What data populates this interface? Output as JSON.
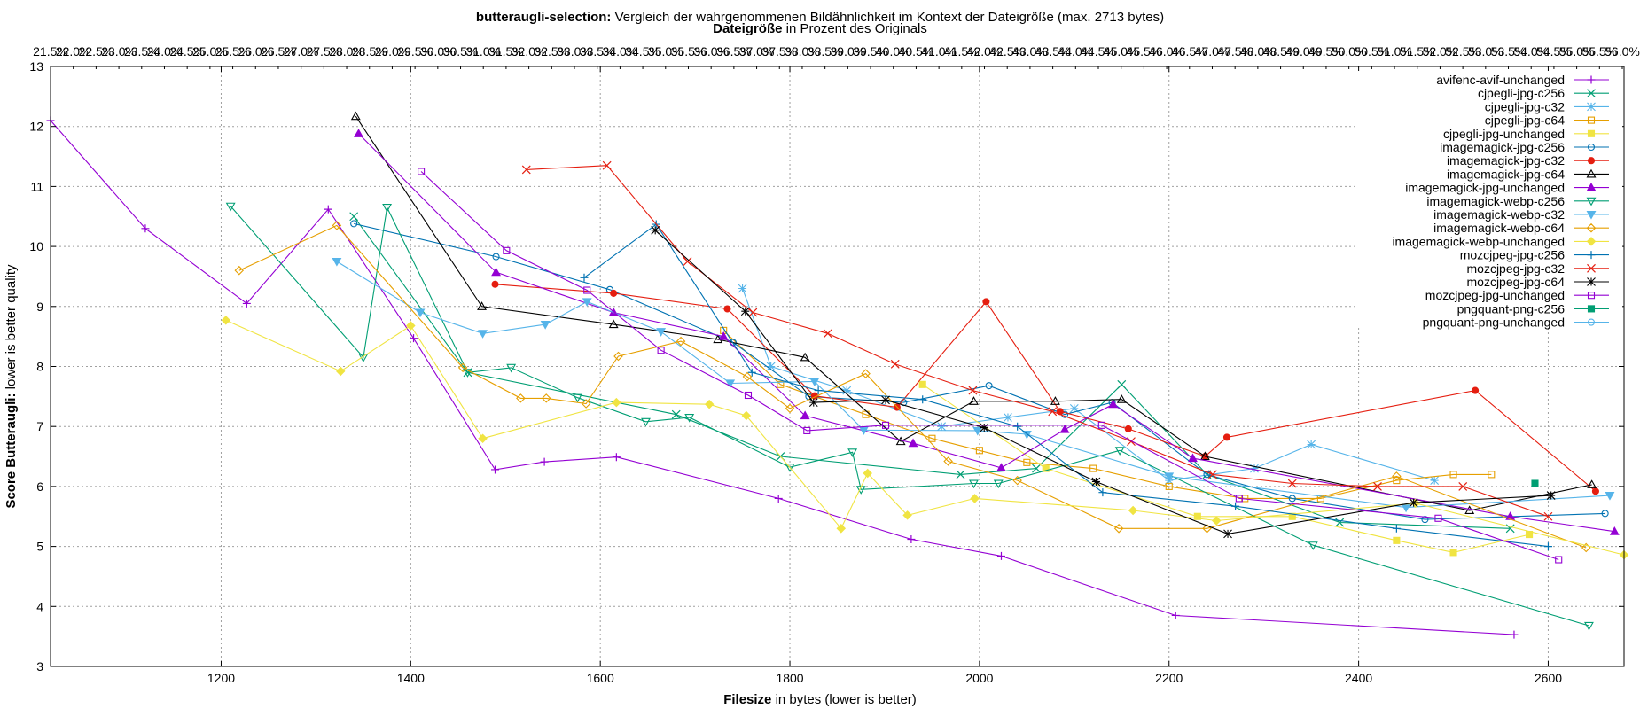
{
  "title": {
    "bold": "butteraugli-selection:",
    "rest": " Vergleich der wahrgenommenen Bildähnlichkeit im Kontext der Dateigröße (max. 2713 bytes)"
  },
  "x2label": {
    "bold": "Dateigröße",
    "rest": " in Prozent des Originals"
  },
  "xlabel": {
    "bold": "Filesize",
    "rest": " in bytes (lower is better)"
  },
  "ylabel": {
    "bold": "Score Butteraugli:",
    "rest": " lower is better quality"
  },
  "chart_data": {
    "type": "line",
    "xlim": [
      1020,
      2680
    ],
    "ylim": [
      3,
      13
    ],
    "x_ticks": [
      1200,
      1400,
      1600,
      1800,
      2000,
      2200,
      2400,
      2600
    ],
    "y_ticks": [
      3,
      4,
      5,
      6,
      7,
      8,
      9,
      10,
      11,
      12,
      13
    ],
    "x2_ticks": [
      "21.5%",
      "22.0%",
      "22.5%",
      "23.0%",
      "23.5%",
      "24.0%",
      "24.5%",
      "25.0%",
      "25.5%",
      "26.0%",
      "26.5%",
      "27.0%",
      "27.5%",
      "28.0%",
      "28.5%",
      "29.0%",
      "29.5%",
      "30.0%",
      "30.5%",
      "31.0%",
      "31.5%",
      "32.0%",
      "32.5%",
      "33.0%",
      "33.5%",
      "34.0%",
      "34.5%",
      "35.0%",
      "35.5%",
      "36.0%",
      "36.5%",
      "37.0%",
      "37.5%",
      "38.0%",
      "38.5%",
      "39.0%",
      "39.5%",
      "40.0%",
      "40.5%",
      "41.0%",
      "41.5%",
      "42.0%",
      "42.5%",
      "43.0%",
      "43.5%",
      "44.0%",
      "44.5%",
      "45.0%",
      "45.5%",
      "46.0%",
      "46.5%",
      "47.0%",
      "47.5%",
      "48.0%",
      "48.5%",
      "49.0%",
      "49.5%",
      "50.0%",
      "50.5%",
      "51.0%",
      "51.5%",
      "52.0%",
      "52.5%",
      "53.0%",
      "53.5%",
      "54.0%",
      "54.5%",
      "55.0%",
      "55.5%",
      "56.0%"
    ],
    "grid": true,
    "legend_position": "top-right",
    "series": [
      {
        "name": "avifenc-avif-unchanged",
        "color": "#9400d3",
        "marker": "plus",
        "x": [
          1020,
          1120,
          1227,
          1313,
          1403,
          1489,
          1541,
          1617,
          1788,
          1928,
          2023,
          2207,
          2564
        ],
        "y": [
          12.1,
          10.3,
          9.05,
          10.62,
          8.47,
          6.28,
          6.41,
          6.49,
          5.8,
          5.12,
          4.84,
          3.85,
          3.53
        ]
      },
      {
        "name": "cjpegli-jpg-c256",
        "color": "#009e73",
        "marker": "cross",
        "x": [
          1340,
          1460,
          1680,
          1790,
          1980,
          2060,
          2150,
          2240,
          2380,
          2560
        ],
        "y": [
          10.5,
          7.9,
          7.2,
          6.5,
          6.2,
          6.3,
          7.7,
          6.2,
          5.4,
          5.3
        ]
      },
      {
        "name": "cjpegli-jpg-c32",
        "color": "#56b4e9",
        "marker": "star",
        "x": [
          1750,
          1780,
          1860,
          1960,
          2030,
          2100,
          2200,
          2290,
          2350,
          2480
        ],
        "y": [
          9.3,
          8.0,
          7.6,
          7.0,
          7.15,
          7.3,
          6.1,
          6.3,
          6.7,
          6.1
        ]
      },
      {
        "name": "cjpegli-jpg-c64",
        "color": "#e69f00",
        "marker": "box",
        "x": [
          1730,
          1790,
          1880,
          1950,
          2000,
          2050,
          2120,
          2200,
          2280,
          2360,
          2440,
          2500,
          2540
        ],
        "y": [
          8.6,
          7.7,
          7.2,
          6.8,
          6.6,
          6.4,
          6.3,
          6.0,
          5.8,
          5.8,
          6.1,
          6.2,
          6.2
        ]
      },
      {
        "name": "cjpegli-jpg-unchanged",
        "color": "#f0e442",
        "marker": "boxf",
        "x": [
          1940,
          2070,
          2230,
          2330,
          2440,
          2500,
          2580
        ],
        "y": [
          7.7,
          6.3,
          5.5,
          5.5,
          5.1,
          4.9,
          5.2
        ]
      },
      {
        "name": "imagemagick-jpg-c256",
        "color": "#0072b2",
        "marker": "circle",
        "x": [
          1340,
          1490,
          1610,
          1740,
          1820,
          1920,
          2010,
          2090,
          2140,
          2240,
          2330,
          2470,
          2660
        ],
        "y": [
          10.38,
          9.83,
          9.28,
          8.4,
          7.5,
          7.4,
          7.68,
          7.2,
          7.4,
          6.2,
          5.8,
          5.45,
          5.55
        ]
      },
      {
        "name": "imagemagick-jpg-c32",
        "color": "#e51e10",
        "marker": "circlef",
        "x": [
          1489,
          1614,
          1734,
          1826,
          1913,
          2007,
          2085,
          2157,
          2238,
          2261,
          2523,
          2650
        ],
        "y": [
          9.37,
          9.22,
          8.96,
          7.51,
          7.32,
          9.08,
          7.25,
          6.96,
          6.5,
          6.82,
          7.6,
          5.92
        ]
      },
      {
        "name": "imagemagick-jpg-c64",
        "color": "#000000",
        "marker": "triangle",
        "x": [
          1342,
          1475,
          1614,
          1724,
          1816,
          1917,
          1994,
          2080,
          2150,
          2238,
          2517,
          2646
        ],
        "y": [
          12.17,
          9.0,
          8.7,
          8.45,
          8.15,
          6.75,
          7.42,
          7.42,
          7.45,
          6.5,
          5.6,
          6.03
        ]
      },
      {
        "name": "imagemagick-jpg-unchanged",
        "color": "#9400d3",
        "marker": "trianglef",
        "x": [
          1345,
          1490,
          1614,
          1730,
          1816,
          1930,
          2023,
          2090,
          2141,
          2225,
          2560,
          2670
        ],
        "y": [
          11.88,
          9.57,
          8.9,
          8.5,
          7.18,
          6.72,
          6.31,
          6.95,
          7.37,
          6.47,
          5.5,
          5.25
        ]
      },
      {
        "name": "imagemagick-webp-c256",
        "color": "#009e73",
        "marker": "itriangle",
        "x": [
          1210,
          1350,
          1375,
          1460,
          1506,
          1576,
          1648,
          1694,
          1800,
          1866,
          1875,
          1994,
          2020,
          2148,
          2352,
          2643
        ],
        "y": [
          10.67,
          8.15,
          10.65,
          7.9,
          7.98,
          7.48,
          7.08,
          7.15,
          6.32,
          6.57,
          5.95,
          6.05,
          6.05,
          6.6,
          5.02,
          3.68
        ]
      },
      {
        "name": "imagemagick-webp-c32",
        "color": "#56b4e9",
        "marker": "itrianglef",
        "x": [
          1322,
          1410,
          1476,
          1542,
          1586,
          1664,
          1737,
          1826,
          1878,
          1998,
          2050,
          2200,
          2450,
          2665
        ],
        "y": [
          9.75,
          8.9,
          8.55,
          8.7,
          9.08,
          8.58,
          7.72,
          7.75,
          6.94,
          6.93,
          6.87,
          6.17,
          5.65,
          5.85
        ]
      },
      {
        "name": "imagemagick-webp-c64",
        "color": "#e69f00",
        "marker": "diamond",
        "x": [
          1219,
          1322,
          1455,
          1516,
          1543,
          1585,
          1619,
          1685,
          1755,
          1800,
          1880,
          1967,
          2040,
          2147,
          2240,
          2440,
          2640
        ],
        "y": [
          9.6,
          10.35,
          7.98,
          7.47,
          7.47,
          7.38,
          8.17,
          8.42,
          7.83,
          7.3,
          7.88,
          6.42,
          6.1,
          5.3,
          5.3,
          6.17,
          4.98
        ]
      },
      {
        "name": "imagemagick-webp-unchanged",
        "color": "#f0e442",
        "marker": "diamondf",
        "x": [
          1205,
          1326,
          1400,
          1476,
          1617,
          1715,
          1754,
          1854,
          1882,
          1924,
          1995,
          2162,
          2250,
          2460,
          2680
        ],
        "y": [
          8.77,
          7.92,
          8.68,
          6.8,
          7.4,
          7.37,
          7.18,
          5.3,
          6.22,
          5.52,
          5.8,
          5.6,
          5.43,
          5.72,
          4.86
        ]
      },
      {
        "name": "mozcjpeg-jpg-c256",
        "color": "#0072b2",
        "marker": "plus",
        "x": [
          1583,
          1659,
          1760,
          1830,
          1940,
          2040,
          2130,
          2270,
          2440,
          2600
        ],
        "y": [
          9.48,
          10.37,
          7.9,
          7.6,
          7.45,
          7.0,
          5.9,
          5.67,
          5.3,
          5.0
        ]
      },
      {
        "name": "mozcjpeg-jpg-c32",
        "color": "#e51e10",
        "marker": "cross",
        "x": [
          1522,
          1607,
          1692,
          1761,
          1840,
          1911,
          1993,
          2077,
          2160,
          2246,
          2330,
          2420,
          2510,
          2600
        ],
        "y": [
          11.28,
          11.35,
          9.75,
          8.9,
          8.55,
          8.04,
          7.6,
          7.25,
          6.75,
          6.2,
          6.05,
          6.0,
          6.0,
          5.5
        ]
      },
      {
        "name": "mozcjpeg-jpg-c64",
        "color": "#000000",
        "marker": "star",
        "x": [
          1658,
          1753,
          1825,
          1901,
          2005,
          2123,
          2262,
          2458,
          2603
        ],
        "y": [
          10.27,
          8.92,
          7.4,
          7.44,
          6.98,
          6.08,
          5.21,
          5.73,
          5.85
        ]
      },
      {
        "name": "mozcjpeg-jpg-unchanged",
        "color": "#9400d3",
        "marker": "box",
        "x": [
          1411,
          1501,
          1586,
          1664,
          1756,
          1818,
          1901,
          2129,
          2274,
          2484,
          2611
        ],
        "y": [
          11.25,
          9.93,
          9.27,
          8.27,
          7.52,
          6.93,
          7.02,
          7.02,
          5.8,
          5.47,
          4.78
        ]
      },
      {
        "name": "pngquant-png-c256",
        "color": "#009e73",
        "marker": "boxf",
        "x": [
          2586
        ],
        "y": [
          6.05
        ]
      },
      {
        "name": "pngquant-png-unchanged",
        "color": "#56b4e9",
        "marker": "circle",
        "x": [],
        "y": []
      }
    ]
  }
}
